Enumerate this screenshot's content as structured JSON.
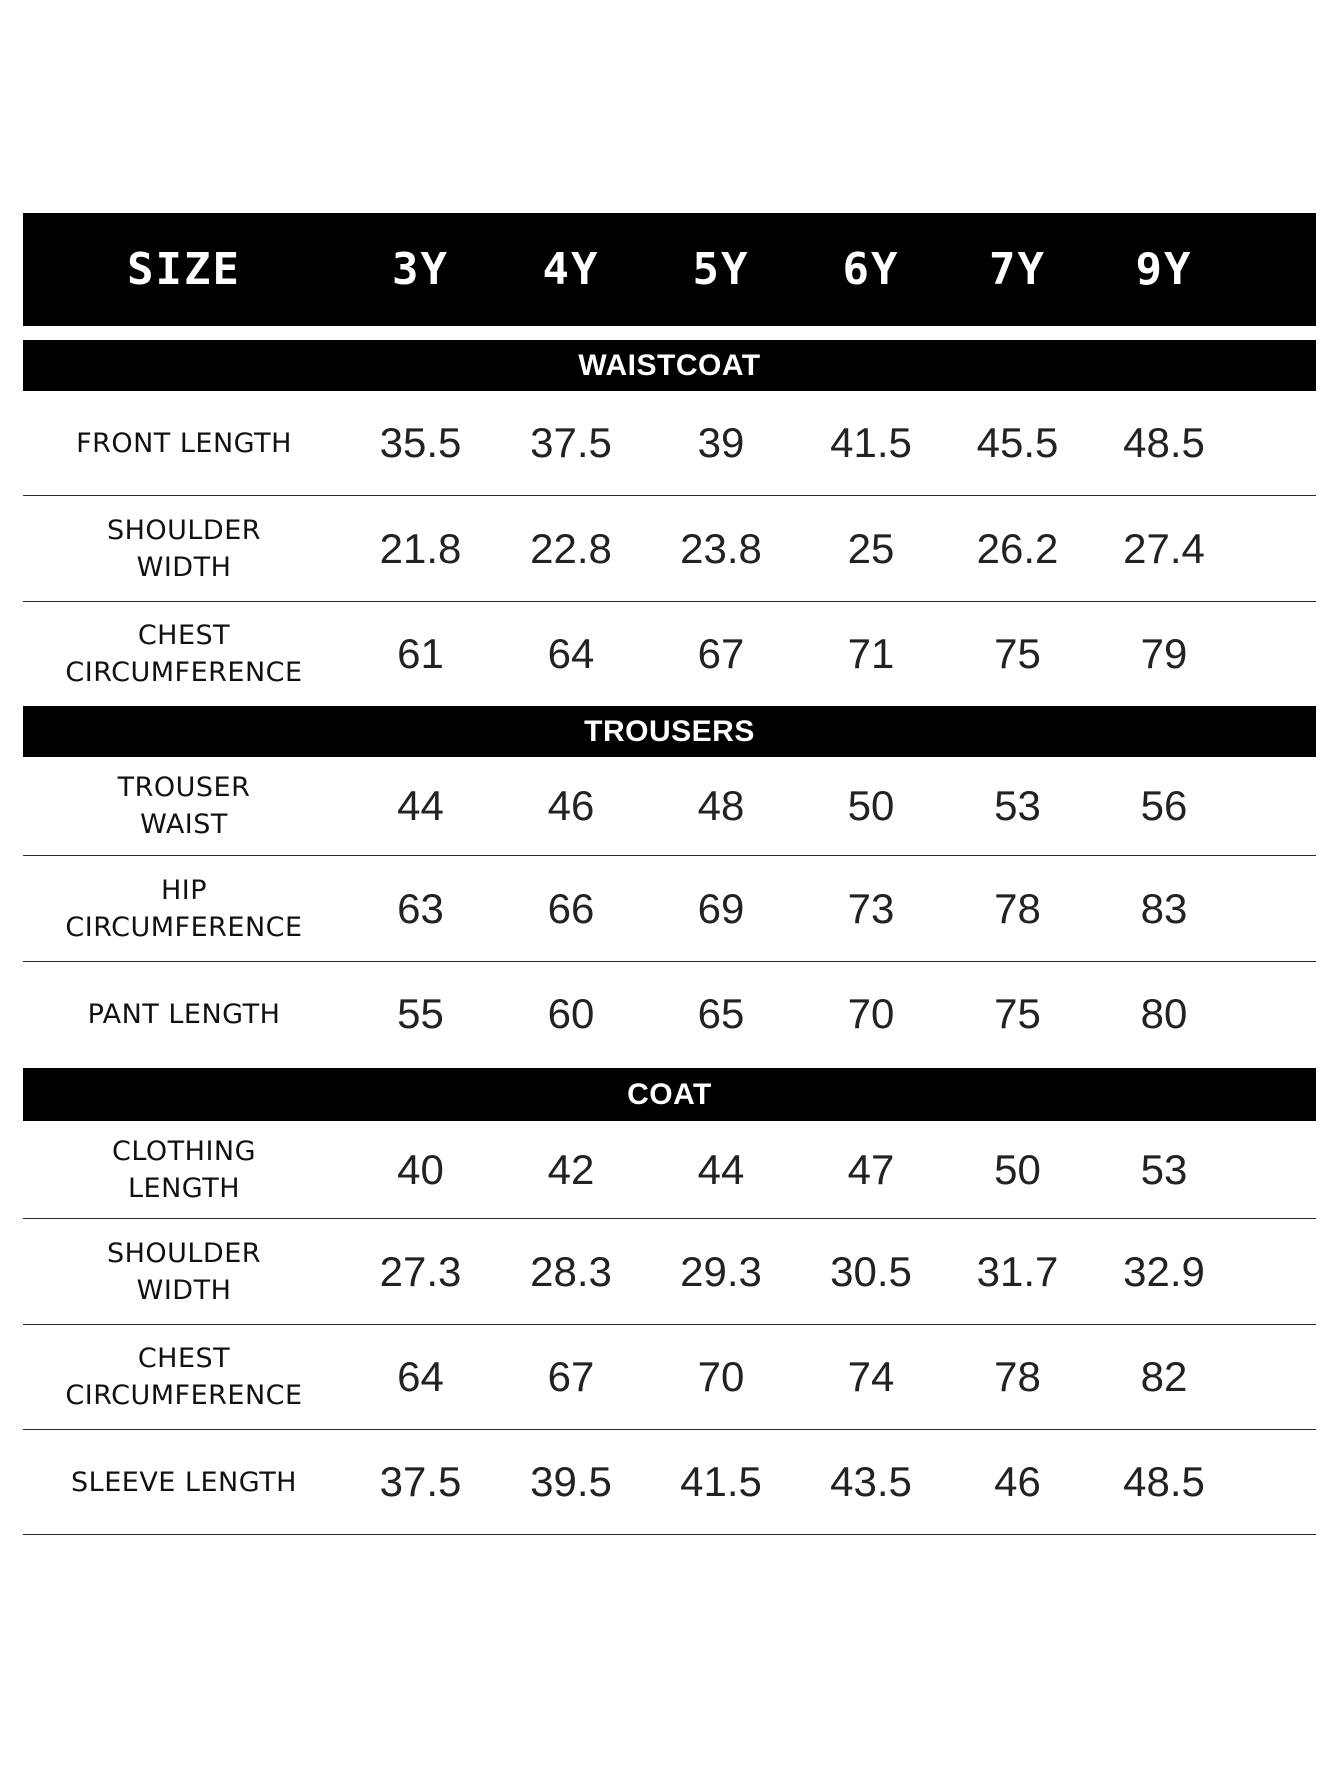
{
  "header": {
    "size_label": "SIZE",
    "sizes": [
      "3Y",
      "4Y",
      "5Y",
      "6Y",
      "7Y",
      "9Y"
    ]
  },
  "sections": [
    {
      "title": "WAISTCOAT",
      "rows": [
        {
          "label": [
            "FRONT LENGTH"
          ],
          "values": [
            "35.5",
            "37.5",
            "39",
            "41.5",
            "45.5",
            "48.5"
          ]
        },
        {
          "label": [
            "SHOULDER",
            "WIDTH"
          ],
          "values": [
            "21.8",
            "22.8",
            "23.8",
            "25",
            "26.2",
            "27.4"
          ]
        },
        {
          "label": [
            "CHEST",
            "CIRCUMFERENCE"
          ],
          "values": [
            "61",
            "64",
            "67",
            "71",
            "75",
            "79"
          ]
        }
      ]
    },
    {
      "title": "TROUSERS",
      "rows": [
        {
          "label": [
            "TROUSER",
            "WAIST"
          ],
          "values": [
            "44",
            "46",
            "48",
            "50",
            "53",
            "56"
          ]
        },
        {
          "label": [
            "HIP",
            "CIRCUMFERENCE"
          ],
          "values": [
            "63",
            "66",
            "69",
            "73",
            "78",
            "83"
          ]
        },
        {
          "label": [
            "PANT LENGTH"
          ],
          "values": [
            "55",
            "60",
            "65",
            "70",
            "75",
            "80"
          ]
        }
      ]
    },
    {
      "title": "COAT",
      "rows": [
        {
          "label": [
            "CLOTHING",
            "LENGTH"
          ],
          "values": [
            "40",
            "42",
            "44",
            "47",
            "50",
            "53"
          ]
        },
        {
          "label": [
            "SHOULDER",
            "WIDTH"
          ],
          "values": [
            "27.3",
            "28.3",
            "29.3",
            "30.5",
            "31.7",
            "32.9"
          ]
        },
        {
          "label": [
            "CHEST",
            "CIRCUMFERENCE"
          ],
          "values": [
            "64",
            "67",
            "70",
            "74",
            "78",
            "82"
          ]
        },
        {
          "label": [
            "SLEEVE LENGTH"
          ],
          "values": [
            "37.5",
            "39.5",
            "41.5",
            "43.5",
            "46",
            "48.5"
          ]
        }
      ]
    }
  ]
}
